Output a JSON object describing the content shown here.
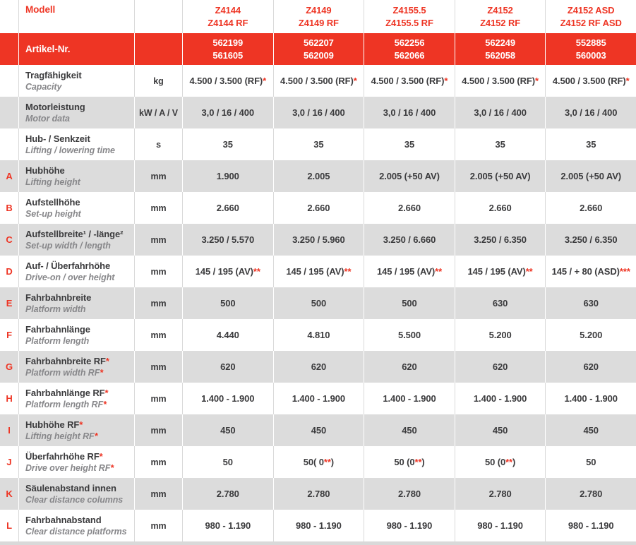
{
  "colors": {
    "accent_red": "#ee3524",
    "alt_row_bg": "#dcdcdc",
    "text": "#3b3b3d",
    "muted_italic": "#87878a",
    "divider": "#d9d9d9",
    "article_row_text": "#ffffff"
  },
  "header": {
    "model_label": "Modell",
    "article_label": "Artikel-Nr.",
    "columns": [
      {
        "model": [
          "Z4144",
          "Z4144 RF"
        ],
        "articles": [
          "562199",
          "561605"
        ]
      },
      {
        "model": [
          "Z4149",
          "Z4149 RF"
        ],
        "articles": [
          "562207",
          "562009"
        ]
      },
      {
        "model": [
          "Z4155.5",
          "Z4155.5 RF"
        ],
        "articles": [
          "562256",
          "562066"
        ]
      },
      {
        "model": [
          "Z4152",
          "Z4152 RF"
        ],
        "articles": [
          "562249",
          "562058"
        ]
      },
      {
        "model": [
          "Z4152 ASD",
          "Z4152 RF ASD"
        ],
        "articles": [
          "552885",
          "560003"
        ]
      }
    ]
  },
  "rows": [
    {
      "letter": "",
      "de": [
        {
          "t": "Tragfähigkeit"
        }
      ],
      "en": [
        {
          "t": "Capacity"
        }
      ],
      "unit": "kg",
      "values": [
        [
          {
            "t": "4.500 / 3.500 (RF)"
          },
          {
            "t": "*",
            "red": true
          }
        ],
        [
          {
            "t": "4.500 / 3.500 (RF)"
          },
          {
            "t": "*",
            "red": true
          }
        ],
        [
          {
            "t": "4.500 / 3.500 (RF)"
          },
          {
            "t": "*",
            "red": true
          }
        ],
        [
          {
            "t": "4.500 / 3.500 (RF)"
          },
          {
            "t": "*",
            "red": true
          }
        ],
        [
          {
            "t": "4.500 / 3.500 (RF)"
          },
          {
            "t": "*",
            "red": true
          }
        ]
      ]
    },
    {
      "letter": "",
      "de": [
        {
          "t": "Motorleistung"
        }
      ],
      "en": [
        {
          "t": "Motor data"
        }
      ],
      "unit": "kW / A / V",
      "values": [
        [
          {
            "t": "3,0 / 16 / 400"
          }
        ],
        [
          {
            "t": "3,0 / 16 / 400"
          }
        ],
        [
          {
            "t": "3,0 / 16 / 400"
          }
        ],
        [
          {
            "t": "3,0 / 16 / 400"
          }
        ],
        [
          {
            "t": "3,0 / 16 / 400"
          }
        ]
      ]
    },
    {
      "letter": "",
      "de": [
        {
          "t": "Hub- / Senkzeit"
        }
      ],
      "en": [
        {
          "t": "Lifting / lowering time"
        }
      ],
      "unit": "s",
      "values": [
        [
          {
            "t": "35"
          }
        ],
        [
          {
            "t": "35"
          }
        ],
        [
          {
            "t": "35"
          }
        ],
        [
          {
            "t": "35"
          }
        ],
        [
          {
            "t": "35"
          }
        ]
      ]
    },
    {
      "letter": "A",
      "de": [
        {
          "t": "Hubhöhe"
        }
      ],
      "en": [
        {
          "t": "Lifting height"
        }
      ],
      "unit": "mm",
      "values": [
        [
          {
            "t": "1.900"
          }
        ],
        [
          {
            "t": "2.005"
          }
        ],
        [
          {
            "t": "2.005 (+50 AV)"
          }
        ],
        [
          {
            "t": "2.005 (+50 AV)"
          }
        ],
        [
          {
            "t": "2.005 (+50 AV)"
          }
        ]
      ]
    },
    {
      "letter": "B",
      "de": [
        {
          "t": "Aufstellhöhe"
        }
      ],
      "en": [
        {
          "t": "Set-up height"
        }
      ],
      "unit": "mm",
      "values": [
        [
          {
            "t": "2.660"
          }
        ],
        [
          {
            "t": "2.660"
          }
        ],
        [
          {
            "t": "2.660"
          }
        ],
        [
          {
            "t": "2.660"
          }
        ],
        [
          {
            "t": "2.660"
          }
        ]
      ]
    },
    {
      "letter": "C",
      "de": [
        {
          "t": "Aufstellbreite¹ / -länge²"
        }
      ],
      "en": [
        {
          "t": "Set-up width / length"
        }
      ],
      "unit": "mm",
      "values": [
        [
          {
            "t": "3.250 / 5.570"
          }
        ],
        [
          {
            "t": "3.250 / 5.960"
          }
        ],
        [
          {
            "t": "3.250 / 6.660"
          }
        ],
        [
          {
            "t": "3.250 / 6.350"
          }
        ],
        [
          {
            "t": "3.250 / 6.350"
          }
        ]
      ]
    },
    {
      "letter": "D",
      "de": [
        {
          "t": "Auf- / Überfahrhöhe"
        }
      ],
      "en": [
        {
          "t": "Drive-on / over height"
        }
      ],
      "unit": "mm",
      "values": [
        [
          {
            "t": "145 / 195 (AV)"
          },
          {
            "t": "**",
            "red": true
          }
        ],
        [
          {
            "t": "145 / 195 (AV)"
          },
          {
            "t": "**",
            "red": true
          }
        ],
        [
          {
            "t": "145 / 195 (AV)"
          },
          {
            "t": "**",
            "red": true
          }
        ],
        [
          {
            "t": "145 / 195 (AV)"
          },
          {
            "t": "**",
            "red": true
          }
        ],
        [
          {
            "t": "145 / + 80 (ASD)"
          },
          {
            "t": "***",
            "red": true
          }
        ]
      ]
    },
    {
      "letter": "E",
      "de": [
        {
          "t": "Fahrbahnbreite"
        }
      ],
      "en": [
        {
          "t": "Platform width"
        }
      ],
      "unit": "mm",
      "values": [
        [
          {
            "t": "500"
          }
        ],
        [
          {
            "t": "500"
          }
        ],
        [
          {
            "t": "500"
          }
        ],
        [
          {
            "t": "630"
          }
        ],
        [
          {
            "t": "630"
          }
        ]
      ]
    },
    {
      "letter": "F",
      "de": [
        {
          "t": "Fahrbahnlänge"
        }
      ],
      "en": [
        {
          "t": "Platform length"
        }
      ],
      "unit": "mm",
      "values": [
        [
          {
            "t": "4.440"
          }
        ],
        [
          {
            "t": "4.810"
          }
        ],
        [
          {
            "t": "5.500"
          }
        ],
        [
          {
            "t": "5.200"
          }
        ],
        [
          {
            "t": "5.200"
          }
        ]
      ]
    },
    {
      "letter": "G",
      "de": [
        {
          "t": "Fahrbahnbreite RF"
        },
        {
          "t": "*",
          "red": true
        }
      ],
      "en": [
        {
          "t": "Platform width RF"
        },
        {
          "t": "*",
          "red": true
        }
      ],
      "unit": "mm",
      "values": [
        [
          {
            "t": "620"
          }
        ],
        [
          {
            "t": "620"
          }
        ],
        [
          {
            "t": "620"
          }
        ],
        [
          {
            "t": "620"
          }
        ],
        [
          {
            "t": "620"
          }
        ]
      ]
    },
    {
      "letter": "H",
      "de": [
        {
          "t": "Fahrbahnlänge RF"
        },
        {
          "t": "*",
          "red": true
        }
      ],
      "en": [
        {
          "t": "Platform length RF"
        },
        {
          "t": "*",
          "red": true
        }
      ],
      "unit": "mm",
      "values": [
        [
          {
            "t": "1.400 - 1.900"
          }
        ],
        [
          {
            "t": "1.400 - 1.900"
          }
        ],
        [
          {
            "t": "1.400 - 1.900"
          }
        ],
        [
          {
            "t": "1.400 - 1.900"
          }
        ],
        [
          {
            "t": "1.400 - 1.900"
          }
        ]
      ]
    },
    {
      "letter": "I",
      "de": [
        {
          "t": "Hubhöhe RF"
        },
        {
          "t": "*",
          "red": true
        }
      ],
      "en": [
        {
          "t": "Lifting height RF"
        },
        {
          "t": "*",
          "red": true
        }
      ],
      "unit": "mm",
      "values": [
        [
          {
            "t": "450"
          }
        ],
        [
          {
            "t": "450"
          }
        ],
        [
          {
            "t": "450"
          }
        ],
        [
          {
            "t": "450"
          }
        ],
        [
          {
            "t": "450"
          }
        ]
      ]
    },
    {
      "letter": "J",
      "de": [
        {
          "t": "Überfahrhöhe RF"
        },
        {
          "t": "*",
          "red": true
        }
      ],
      "en": [
        {
          "t": "Drive over height RF"
        },
        {
          "t": "*",
          "red": true
        }
      ],
      "unit": "mm",
      "values": [
        [
          {
            "t": "50"
          }
        ],
        [
          {
            "t": "50( 0"
          },
          {
            "t": "**",
            "red": true
          },
          {
            "t": ")"
          }
        ],
        [
          {
            "t": "50 (0"
          },
          {
            "t": "**",
            "red": true
          },
          {
            "t": ")"
          }
        ],
        [
          {
            "t": "50 (0"
          },
          {
            "t": "**",
            "red": true
          },
          {
            "t": ")"
          }
        ],
        [
          {
            "t": "50"
          }
        ]
      ]
    },
    {
      "letter": "K",
      "de": [
        {
          "t": "Säulenabstand innen"
        }
      ],
      "en": [
        {
          "t": "Clear distance columns"
        }
      ],
      "unit": "mm",
      "values": [
        [
          {
            "t": "2.780"
          }
        ],
        [
          {
            "t": "2.780"
          }
        ],
        [
          {
            "t": "2.780"
          }
        ],
        [
          {
            "t": "2.780"
          }
        ],
        [
          {
            "t": "2.780"
          }
        ]
      ]
    },
    {
      "letter": "L",
      "de": [
        {
          "t": "Fahrbahnabstand"
        }
      ],
      "en": [
        {
          "t": "Clear distance platforms"
        }
      ],
      "unit": "mm",
      "values": [
        [
          {
            "t": "980 - 1.190"
          }
        ],
        [
          {
            "t": "980 - 1.190"
          }
        ],
        [
          {
            "t": "980 - 1.190"
          }
        ],
        [
          {
            "t": "980 - 1.190"
          }
        ],
        [
          {
            "t": "980 - 1.190"
          }
        ]
      ]
    }
  ]
}
